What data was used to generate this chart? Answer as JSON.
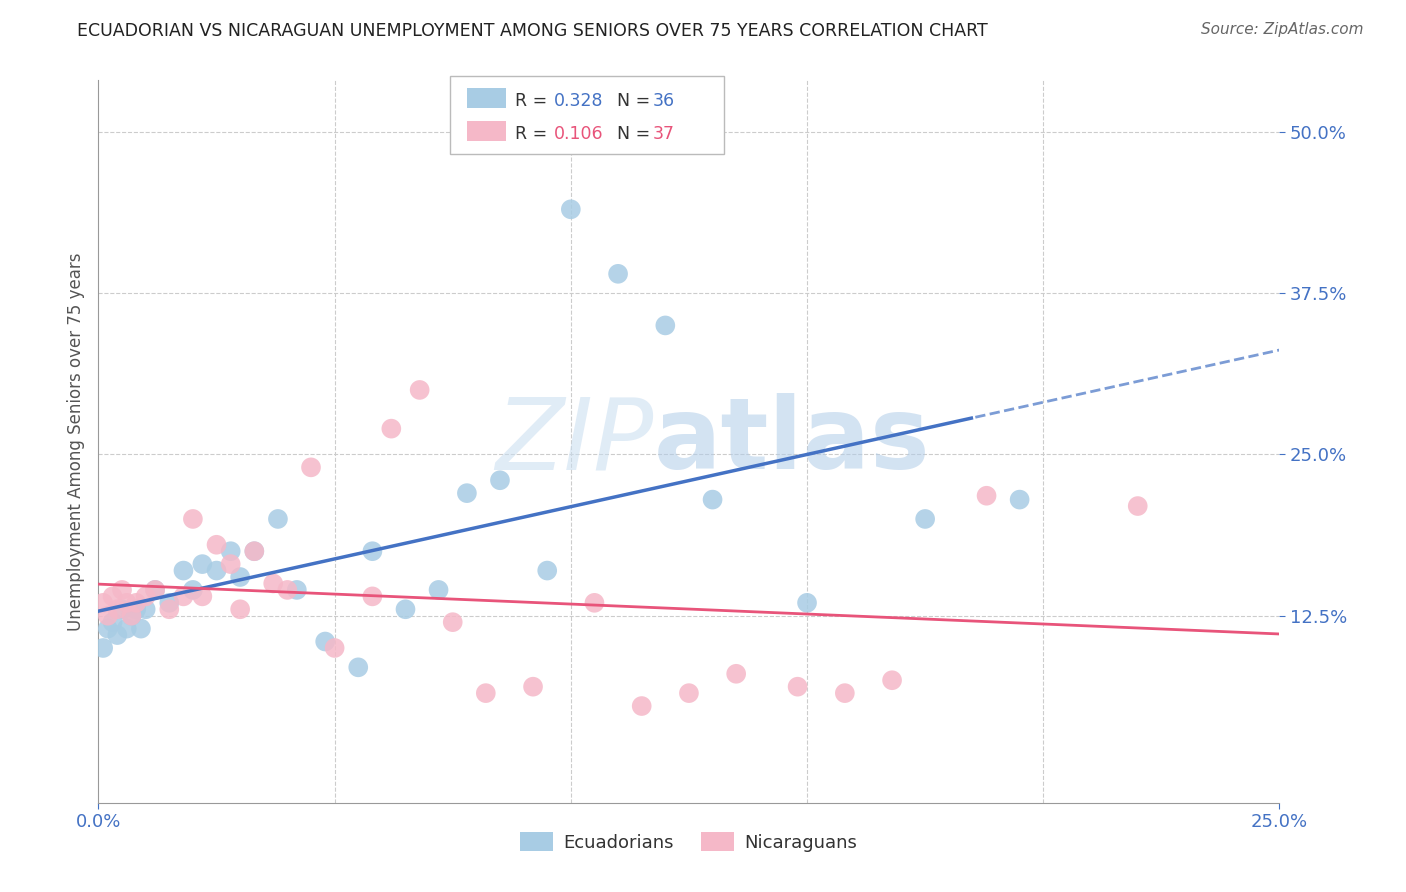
{
  "title": "ECUADORIAN VS NICARAGUAN UNEMPLOYMENT AMONG SENIORS OVER 75 YEARS CORRELATION CHART",
  "source": "Source: ZipAtlas.com",
  "ylabel_label": "Unemployment Among Seniors over 75 years",
  "xlim": [
    0.0,
    0.25
  ],
  "ylim": [
    -0.02,
    0.54
  ],
  "yticks": [
    0.125,
    0.25,
    0.375,
    0.5
  ],
  "xticks": [
    0.0,
    0.25
  ],
  "legend_r_blue": "0.328",
  "legend_n_blue": "36",
  "legend_r_pink": "0.106",
  "legend_n_pink": "37",
  "blue_color": "#a8cce4",
  "pink_color": "#f5b8c8",
  "blue_line_color": "#4472c4",
  "pink_line_color": "#e8547a",
  "ecu_x": [
    0.001,
    0.002,
    0.003,
    0.004,
    0.005,
    0.006,
    0.007,
    0.008,
    0.009,
    0.01,
    0.012,
    0.015,
    0.018,
    0.02,
    0.022,
    0.025,
    0.028,
    0.03,
    0.033,
    0.038,
    0.042,
    0.048,
    0.055,
    0.058,
    0.065,
    0.072,
    0.078,
    0.085,
    0.095,
    0.1,
    0.11,
    0.12,
    0.13,
    0.15,
    0.175,
    0.195
  ],
  "ecu_y": [
    0.1,
    0.115,
    0.12,
    0.11,
    0.13,
    0.115,
    0.125,
    0.13,
    0.115,
    0.13,
    0.145,
    0.135,
    0.16,
    0.145,
    0.165,
    0.16,
    0.175,
    0.155,
    0.175,
    0.2,
    0.145,
    0.105,
    0.085,
    0.175,
    0.13,
    0.145,
    0.22,
    0.23,
    0.16,
    0.44,
    0.39,
    0.35,
    0.215,
    0.135,
    0.2,
    0.215
  ],
  "nic_x": [
    0.001,
    0.002,
    0.003,
    0.004,
    0.005,
    0.006,
    0.007,
    0.008,
    0.01,
    0.012,
    0.015,
    0.018,
    0.02,
    0.022,
    0.025,
    0.028,
    0.03,
    0.033,
    0.037,
    0.04,
    0.045,
    0.05,
    0.058,
    0.062,
    0.068,
    0.075,
    0.082,
    0.092,
    0.105,
    0.115,
    0.125,
    0.135,
    0.148,
    0.158,
    0.168,
    0.188,
    0.22
  ],
  "nic_y": [
    0.135,
    0.125,
    0.14,
    0.13,
    0.145,
    0.135,
    0.125,
    0.135,
    0.14,
    0.145,
    0.13,
    0.14,
    0.2,
    0.14,
    0.18,
    0.165,
    0.13,
    0.175,
    0.15,
    0.145,
    0.24,
    0.1,
    0.14,
    0.27,
    0.3,
    0.12,
    0.065,
    0.07,
    0.135,
    0.055,
    0.065,
    0.08,
    0.07,
    0.065,
    0.075,
    0.218,
    0.21
  ]
}
